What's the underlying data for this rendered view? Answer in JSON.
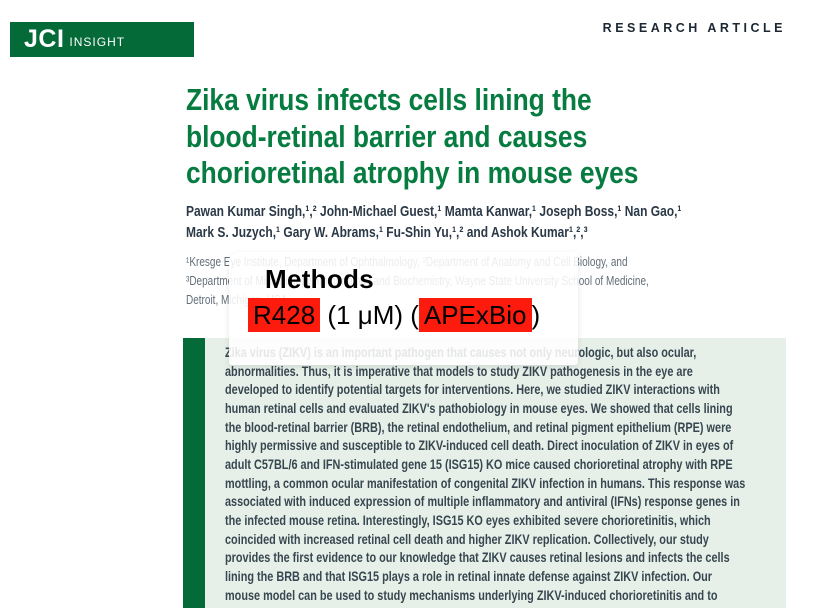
{
  "page": {
    "brand": "JCI",
    "brand_suffix": "insight",
    "kicker": "RESEARCH ARTICLE"
  },
  "article": {
    "title": "Zika virus infects cells lining the\nblood-retinal barrier and causes\nchorioretinal atrophy in mouse eyes",
    "authors": "Pawan Kumar Singh,¹,² John-Michael Guest,¹ Mamta Kanwar,¹ Joseph Boss,¹ Nan Gao,¹\nMark S. Juzych,¹ Gary W. Abrams,¹ Fu-Shin Yu,¹,² and Ashok Kumar¹,²,³",
    "affiliations": "¹Kresge Eye Institute, Department of Ophthalmology, ²Department of Anatomy and Cell Biology, and\n³Department of Microbiology, Immunology and Biochemistry, Wayne State University School of Medicine,\nDetroit, Michigan, USA.",
    "abstract": "Zika virus (ZIKV) is an important pathogen that causes not only neurologic, but also ocular, abnormalities. Thus, it is imperative that models to study ZIKV pathogenesis in the eye are developed to identify potential targets for interventions. Here, we studied ZIKV interactions with human retinal cells and evaluated ZIKV's pathobiology in mouse eyes. We showed that cells lining the blood-retinal barrier (BRB), the retinal endothelium, and retinal pigment epithelium (RPE) were highly permissive and susceptible to ZIKV-induced cell death. Direct inoculation of ZIKV in eyes of adult C57BL/6 and IFN-stimulated gene 15 (ISG15) KO mice caused chorioretinal atrophy with RPE mottling, a common ocular manifestation of congenital ZIKV infection in humans. This response was associated with induced expression of multiple inflammatory and antiviral (IFNs) response genes in the infected mouse retina. Interestingly, ISG15 KO eyes exhibited severe chorioretinitis, which coincided with increased retinal cell death and higher ZIKV replication. Collectively, our study provides the first evidence to our knowledge that ZIKV causes retinal lesions and infects the cells lining the BRB and that ISG15 plays a role in retinal innate defense against ZIKV infection. Our mouse model can be used to study mechanisms underlying ZIKV-induced chorioretinitis and to"
  },
  "overlay": {
    "heading": "Methods",
    "segments": [
      {
        "text": "R428",
        "highlight": true
      },
      {
        "text": " (1 μM) (",
        "highlight": false
      },
      {
        "text": "APExBio",
        "highlight": true
      },
      {
        "text": ")",
        "highlight": false
      }
    ]
  },
  "colors": {
    "brand_green": "#046a38",
    "title_green": "#077c41",
    "abstract_background": "#e7efe9",
    "highlight_red": "#fc1b0d",
    "kicker_navy": "#1b2733"
  }
}
